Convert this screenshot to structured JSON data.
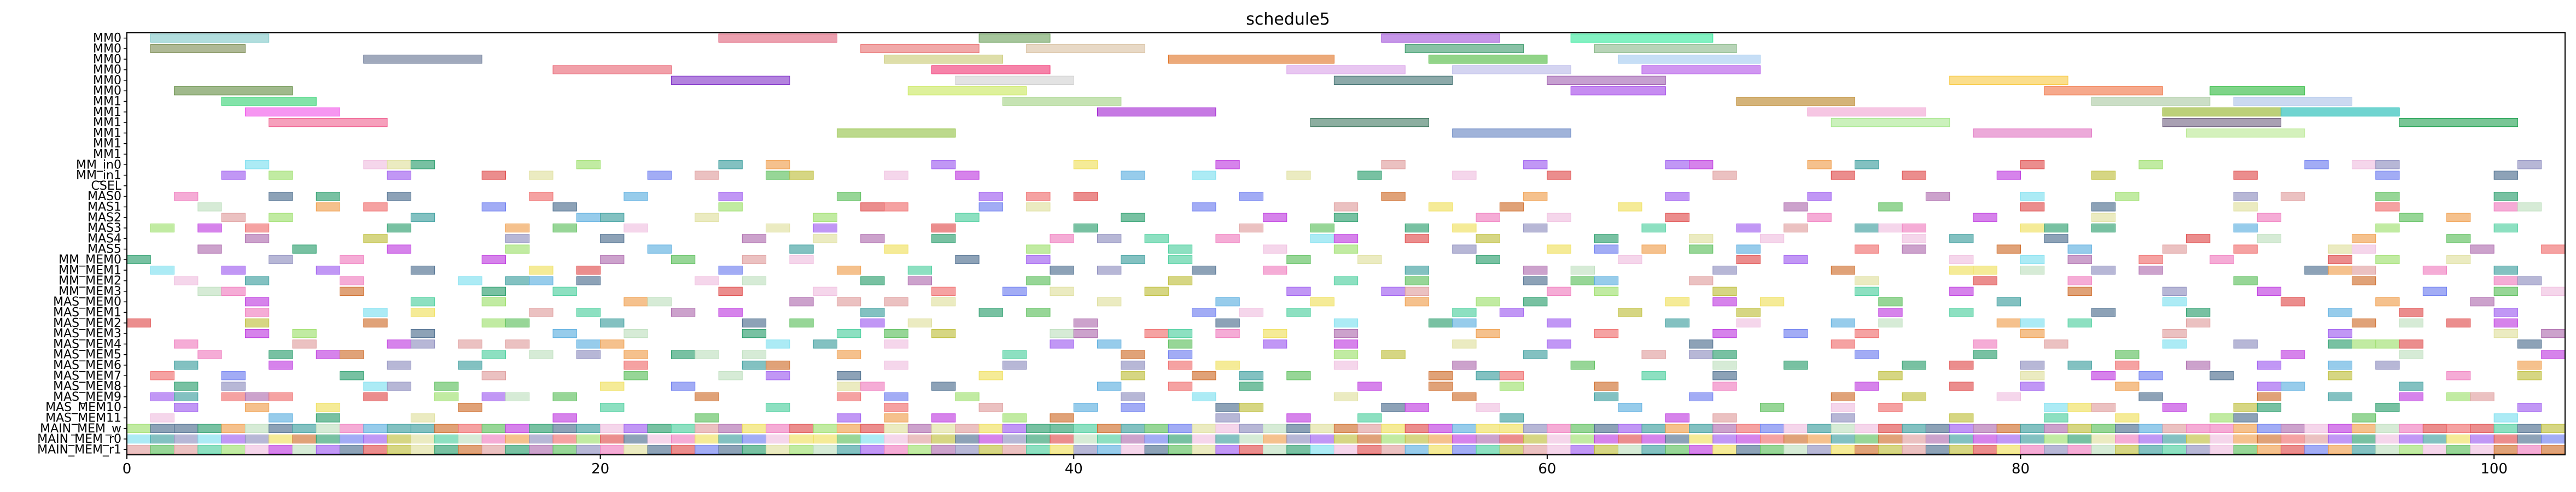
{
  "chart_data": {
    "type": "gantt",
    "title": "schedule5",
    "xlabel": "",
    "ylabel": "",
    "xlim": [
      0,
      103
    ],
    "x_ticks": [
      0,
      20,
      40,
      60,
      80,
      100
    ],
    "rows": [
      "MM0",
      "MM0",
      "MM0",
      "MM0",
      "MM0",
      "MM0",
      "MM1",
      "MM1",
      "MM1",
      "MM1",
      "MM1",
      "MM1",
      "MM_in0",
      "MM_in1",
      "CSEL",
      "MAS0",
      "MAS1",
      "MAS2",
      "MAS3",
      "MAS4",
      "MAS5",
      "MM_MEM0",
      "MM_MEM1",
      "MM_MEM2",
      "MM_MEM3",
      "MAS_MEM0",
      "MAS_MEM1",
      "MAS_MEM2",
      "MAS_MEM3",
      "MAS_MEM4",
      "MAS_MEM5",
      "MAS_MEM6",
      "MAS_MEM7",
      "MAS_MEM8",
      "MAS_MEM9",
      "MAS_MEM10",
      "MAS_MEM11",
      "MAIN_MEM_w",
      "MAIN_MEM_r0",
      "MAIN_MEM_r1"
    ],
    "bars": [
      {
        "row": 0,
        "start": 1,
        "end": 6,
        "color": "#7ec8c8"
      },
      {
        "row": 0,
        "start": 25,
        "end": 30,
        "color": "#e0607a"
      },
      {
        "row": 0,
        "start": 36,
        "end": 39,
        "color": "#6aa05a"
      },
      {
        "row": 0,
        "start": 53,
        "end": 58,
        "color": "#a050d8"
      },
      {
        "row": 0,
        "start": 61,
        "end": 67,
        "color": "#30e89a"
      },
      {
        "row": 1,
        "start": 1,
        "end": 5,
        "color": "#7a8a50"
      },
      {
        "row": 1,
        "start": 31,
        "end": 36,
        "color": "#e87070"
      },
      {
        "row": 1,
        "start": 38,
        "end": 43,
        "color": "#d8c0a0"
      },
      {
        "row": 1,
        "start": 54,
        "end": 59,
        "color": "#3a9a6a"
      },
      {
        "row": 1,
        "start": 62,
        "end": 68,
        "color": "#88b888"
      },
      {
        "row": 2,
        "start": 10,
        "end": 15,
        "color": "#607090"
      },
      {
        "row": 2,
        "start": 32,
        "end": 37,
        "color": "#c8c870"
      },
      {
        "row": 2,
        "start": 44,
        "end": 51,
        "color": "#e07020"
      },
      {
        "row": 2,
        "start": 55,
        "end": 60,
        "color": "#48b838"
      },
      {
        "row": 2,
        "start": 63,
        "end": 69,
        "color": "#a0c8f0"
      },
      {
        "row": 3,
        "start": 18,
        "end": 23,
        "color": "#e86070"
      },
      {
        "row": 3,
        "start": 34,
        "end": 39,
        "color": "#f03070"
      },
      {
        "row": 3,
        "start": 49,
        "end": 54,
        "color": "#d8a0e8"
      },
      {
        "row": 3,
        "start": 56,
        "end": 61,
        "color": "#b8b8e8"
      },
      {
        "row": 3,
        "start": 64,
        "end": 69,
        "color": "#b050e8"
      },
      {
        "row": 4,
        "start": 23,
        "end": 28,
        "color": "#8030c8"
      },
      {
        "row": 4,
        "start": 35,
        "end": 40,
        "color": "#d0d0d0"
      },
      {
        "row": 4,
        "start": 51,
        "end": 56,
        "color": "#407070"
      },
      {
        "row": 4,
        "start": 60,
        "end": 65,
        "color": "#a060b0"
      },
      {
        "row": 4,
        "start": 77,
        "end": 82,
        "color": "#f8c840"
      },
      {
        "row": 5,
        "start": 2,
        "end": 7,
        "color": "#608a40"
      },
      {
        "row": 5,
        "start": 33,
        "end": 38,
        "color": "#c8e858"
      },
      {
        "row": 5,
        "start": 61,
        "end": 65,
        "color": "#a040e8"
      },
      {
        "row": 5,
        "start": 81,
        "end": 86,
        "color": "#f07040"
      },
      {
        "row": 5,
        "start": 88,
        "end": 92,
        "color": "#28b838"
      },
      {
        "row": 6,
        "start": 4,
        "end": 8,
        "color": "#30d070"
      },
      {
        "row": 6,
        "start": 37,
        "end": 42,
        "color": "#a0d080"
      },
      {
        "row": 6,
        "start": 68,
        "end": 73,
        "color": "#b88020"
      },
      {
        "row": 6,
        "start": 83,
        "end": 88,
        "color": "#a8c8a0"
      },
      {
        "row": 6,
        "start": 89,
        "end": 94,
        "color": "#a8c0e8"
      },
      {
        "row": 7,
        "start": 5,
        "end": 9,
        "color": "#f050e8"
      },
      {
        "row": 7,
        "start": 41,
        "end": 46,
        "color": "#a020d0"
      },
      {
        "row": 7,
        "start": 71,
        "end": 76,
        "color": "#f0a0d0"
      },
      {
        "row": 7,
        "start": 86,
        "end": 91,
        "color": "#90b020"
      },
      {
        "row": 7,
        "start": 91,
        "end": 96,
        "color": "#10b8b0"
      },
      {
        "row": 8,
        "start": 6,
        "end": 11,
        "color": "#f06090"
      },
      {
        "row": 8,
        "start": 50,
        "end": 55,
        "color": "#407860"
      },
      {
        "row": 8,
        "start": 72,
        "end": 77,
        "color": "#a8e890"
      },
      {
        "row": 8,
        "start": 86,
        "end": 91,
        "color": "#706080"
      },
      {
        "row": 8,
        "start": 96,
        "end": 101,
        "color": "#20a050"
      },
      {
        "row": 9,
        "start": 30,
        "end": 35,
        "color": "#90c040"
      },
      {
        "row": 9,
        "start": 56,
        "end": 61,
        "color": "#6080c0"
      },
      {
        "row": 9,
        "start": 78,
        "end": 83,
        "color": "#e070c0"
      },
      {
        "row": 9,
        "start": 87,
        "end": 92,
        "color": "#b8e890"
      }
    ],
    "small_rows": [
      12,
      13,
      15,
      16,
      17,
      18,
      19,
      20,
      21,
      22,
      23,
      24,
      25,
      26,
      27,
      28,
      29,
      30,
      31,
      32,
      33,
      34,
      35,
      36,
      37,
      38,
      39
    ],
    "small_palette": [
      "#f080c0",
      "#60b0e0",
      "#a0e070",
      "#c040e0",
      "#f0a050",
      "#50d0a0",
      "#e05050",
      "#7080f0",
      "#c0c040",
      "#f0c0e0",
      "#40a0a0",
      "#d07030",
      "#80e0f0",
      "#b070b0",
      "#60c060",
      "#f0e060",
      "#9090c0",
      "#e0a0a0",
      "#30a070",
      "#a060f0",
      "#c0e0c0",
      "#f07070",
      "#507090",
      "#e0e0a0"
    ],
    "seed": 5
  }
}
